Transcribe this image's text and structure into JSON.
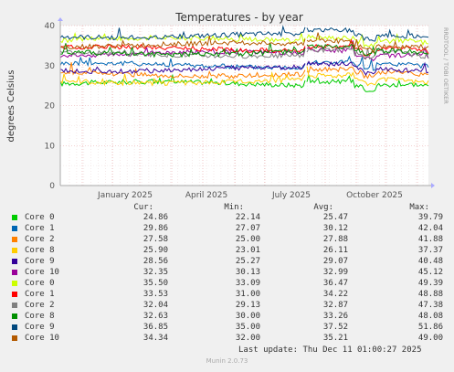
{
  "chart_data": {
    "type": "line",
    "title": "Temperatures - by year",
    "ylabel": "degrees Celsius",
    "side_label": "RRDTOOL / TOBI OETIKER",
    "xlabels": [
      "January 2025",
      "April 2025",
      "July 2025",
      "October 2025"
    ],
    "ylim": [
      0,
      40
    ],
    "yticks": [
      0,
      10,
      20,
      30,
      40
    ],
    "grid": true,
    "legend_headers": {
      "cur": "Cur:",
      "min": "Min:",
      "avg": "Avg:",
      "max": "Max:"
    },
    "series": [
      {
        "name": "Core 0",
        "color": "#00cc00",
        "cur": "24.86",
        "min": "22.14",
        "avg": "25.47",
        "max": "39.79"
      },
      {
        "name": "Core 1",
        "color": "#0066b3",
        "cur": "29.86",
        "min": "27.07",
        "avg": "30.12",
        "max": "42.04"
      },
      {
        "name": "Core 2",
        "color": "#ff8000",
        "cur": "27.58",
        "min": "25.00",
        "avg": "27.88",
        "max": "41.88"
      },
      {
        "name": "Core 8",
        "color": "#ffcc00",
        "cur": "25.90",
        "min": "23.01",
        "avg": "26.11",
        "max": "37.37"
      },
      {
        "name": "Core 9",
        "color": "#330099",
        "cur": "28.56",
        "min": "25.27",
        "avg": "29.07",
        "max": "40.48"
      },
      {
        "name": "Core 10",
        "color": "#990099",
        "cur": "32.35",
        "min": "30.13",
        "avg": "32.99",
        "max": "45.12"
      },
      {
        "name": "Core 0",
        "color": "#ccff00",
        "cur": "35.50",
        "min": "33.09",
        "avg": "36.47",
        "max": "49.39"
      },
      {
        "name": "Core 1",
        "color": "#ff0000",
        "cur": "33.53",
        "min": "31.00",
        "avg": "34.22",
        "max": "48.88"
      },
      {
        "name": "Core 2",
        "color": "#808080",
        "cur": "32.04",
        "min": "29.13",
        "avg": "32.87",
        "max": "47.38"
      },
      {
        "name": "Core 8",
        "color": "#008f00",
        "cur": "32.63",
        "min": "30.00",
        "avg": "33.26",
        "max": "48.08"
      },
      {
        "name": "Core 9",
        "color": "#00487d",
        "cur": "36.85",
        "min": "35.00",
        "avg": "37.52",
        "max": "51.86"
      },
      {
        "name": "Core 10",
        "color": "#b35a00",
        "cur": "34.34",
        "min": "32.00",
        "avg": "35.21",
        "max": "49.00"
      }
    ],
    "last_update": "Last update: Thu Dec 11 01:00:27 2025",
    "footer": "Munin 2.0.73"
  }
}
